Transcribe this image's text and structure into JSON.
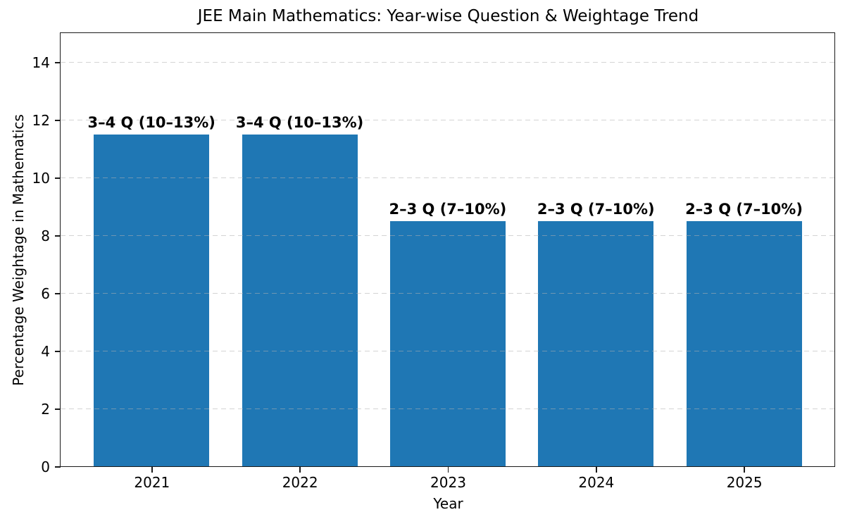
{
  "chart_data": {
    "type": "bar",
    "title": "JEE Main Mathematics: Year-wise Question & Weightage Trend",
    "xlabel": "Year",
    "ylabel": "Percentage Weightage in Mathematics",
    "categories": [
      "2021",
      "2022",
      "2023",
      "2024",
      "2025"
    ],
    "values": [
      11.5,
      11.5,
      8.5,
      8.5,
      8.5
    ],
    "bar_labels": [
      "3–4 Q (10–13%)",
      "3–4 Q (10–13%)",
      "2–3 Q (7–10%)",
      "2–3 Q (7–10%)",
      "2–3 Q (7–10%)"
    ],
    "ylim": [
      0,
      15
    ],
    "yticks": [
      0,
      2,
      4,
      6,
      8,
      10,
      12,
      14
    ],
    "bar_color": "#1f77b4",
    "grid": {
      "axis": "y",
      "linestyle": "dashed",
      "color": "#dcdcdc",
      "drawn_above_bars": true
    },
    "legend": null,
    "background_color": "#ffffff"
  }
}
